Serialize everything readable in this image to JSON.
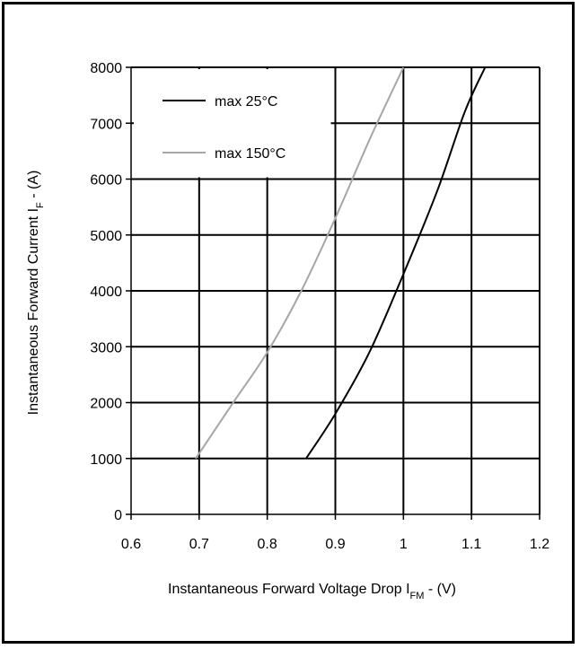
{
  "chart_data": {
    "type": "line",
    "xlabel": "Instantaneous Forward Voltage Drop I",
    "xlabel_sub": "FM",
    "xlabel_suffix": " -  (V)",
    "ylabel": "Instantaneous Forward Current I",
    "ylabel_sub": "F",
    "ylabel_suffix": " - (A)",
    "xlim": [
      0.6,
      1.2
    ],
    "ylim": [
      0,
      8000
    ],
    "x_ticks": [
      0.6,
      0.7,
      0.8,
      0.9,
      1.0,
      1.1,
      1.2
    ],
    "x_tick_labels": [
      "0.6",
      "0.7",
      "0.8",
      "0.9",
      "1",
      "1.1",
      "1.2"
    ],
    "y_ticks": [
      0,
      1000,
      2000,
      3000,
      4000,
      5000,
      6000,
      7000,
      8000
    ],
    "y_tick_labels": [
      "0",
      "1000",
      "2000",
      "3000",
      "4000",
      "5000",
      "6000",
      "7000",
      "8000"
    ],
    "grid": true,
    "legend_position": "top-left",
    "series": [
      {
        "name": "max 25°C",
        "color": "#000000",
        "x": [
          0.857,
          0.9,
          0.95,
          1.0,
          1.05,
          1.09,
          1.12
        ],
        "y": [
          1000,
          1800,
          2900,
          4300,
          5800,
          7200,
          8000
        ]
      },
      {
        "name": "max 150°C",
        "color": "#a6a6a6",
        "x": [
          0.695,
          0.75,
          0.8,
          0.85,
          0.9,
          0.95,
          1.0
        ],
        "y": [
          1000,
          2000,
          2900,
          4000,
          5300,
          6700,
          8000
        ]
      }
    ]
  }
}
